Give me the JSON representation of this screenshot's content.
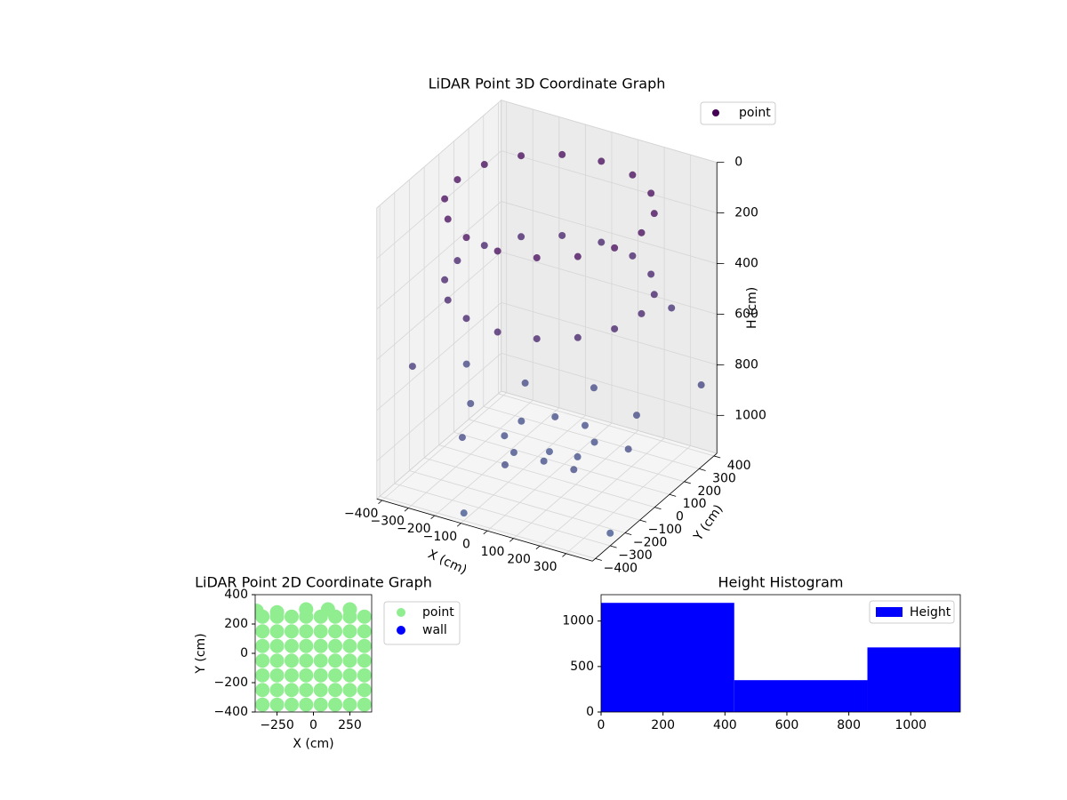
{
  "chart_data": [
    {
      "type": "scatter3d",
      "title": "LiDAR Point 3D Coordinate Graph",
      "xlabel": "X (cm)",
      "ylabel": "Y (cm)",
      "zlabel": "H (cm)",
      "xlim": [
        -420,
        400
      ],
      "ylim": [
        -420,
        420
      ],
      "zlim": [
        0,
        1150
      ],
      "z_inverted": true,
      "xticks": [
        {
          "value": -400,
          "label": "−400"
        },
        {
          "value": -300,
          "label": "−300"
        },
        {
          "value": -200,
          "label": "−200"
        },
        {
          "value": -100,
          "label": "−100"
        },
        0,
        100,
        200,
        300
      ],
      "yticks": [
        {
          "value": -400,
          "label": "−400"
        },
        {
          "value": -300,
          "label": "−300"
        },
        {
          "value": -200,
          "label": "−200"
        },
        {
          "value": -100,
          "label": "−100"
        },
        0,
        100,
        200,
        300,
        400
      ],
      "zticks": [
        0,
        200,
        400,
        600,
        800,
        1000
      ],
      "legend": "upper right",
      "colormap": [
        "#440154",
        "#3b528b"
      ],
      "series": [
        {
          "name": "point",
          "color": "#440154",
          "x": [
            350,
            323,
            247,
            134,
            0,
            -134,
            -247,
            -323,
            -350,
            -323,
            -247,
            -134,
            0,
            134,
            247,
            323,
            350,
            323,
            247,
            134,
            0,
            -134,
            -247,
            -323,
            -350,
            -323,
            -247,
            -134,
            0,
            134,
            247,
            323,
            300,
            212,
            0,
            -212,
            -300,
            -212,
            0,
            212,
            139,
            57,
            -57,
            -139,
            -139,
            -57,
            57,
            139,
            0,
            -400,
            400,
            -380,
            380,
            -100,
            250
          ],
          "y": [
            0,
            134,
            247,
            323,
            350,
            323,
            247,
            134,
            0,
            -134,
            -247,
            -323,
            -350,
            -323,
            -247,
            -134,
            0,
            134,
            247,
            323,
            350,
            323,
            247,
            134,
            0,
            -134,
            -247,
            -323,
            -350,
            -323,
            -247,
            -134,
            0,
            212,
            300,
            212,
            0,
            -212,
            -300,
            -212,
            57,
            139,
            139,
            57,
            -57,
            -139,
            -139,
            -57,
            0,
            150,
            -300,
            -250,
            350,
            -400,
            380
          ],
          "z": [
            80,
            80,
            80,
            80,
            80,
            80,
            80,
            80,
            80,
            80,
            80,
            80,
            80,
            80,
            80,
            80,
            400,
            400,
            400,
            400,
            400,
            400,
            400,
            400,
            400,
            400,
            400,
            400,
            400,
            400,
            400,
            400,
            950,
            950,
            950,
            950,
            950,
            950,
            950,
            950,
            1000,
            1000,
            1000,
            1000,
            1000,
            1000,
            1000,
            1000,
            1050,
            900,
            1100,
            700,
            850,
            1120,
            600
          ]
        }
      ]
    },
    {
      "type": "scatter",
      "title": "LiDAR Point 2D Coordinate Graph",
      "xlabel": "X (cm)",
      "ylabel": "Y (cm)",
      "xlim": [
        -400,
        400
      ],
      "ylim": [
        -400,
        400
      ],
      "xticks": [
        {
          "value": -250,
          "label": "−250"
        },
        0,
        250
      ],
      "yticks": [
        {
          "value": -400,
          "label": "−400"
        },
        {
          "value": -200,
          "label": "−200"
        },
        0,
        200,
        400
      ],
      "legend": "outside upper right",
      "series": [
        {
          "name": "point",
          "color": "#90ee90",
          "x": [
            -350,
            -250,
            -150,
            -50,
            50,
            150,
            250,
            350,
            -350,
            -250,
            -150,
            -50,
            50,
            150,
            250,
            350,
            -350,
            -250,
            -150,
            -50,
            50,
            150,
            250,
            350,
            -350,
            -250,
            -150,
            -50,
            50,
            150,
            250,
            350,
            -350,
            -250,
            -150,
            -50,
            50,
            150,
            250,
            350,
            -350,
            -250,
            -150,
            -50,
            50,
            150,
            250,
            350,
            -350,
            -250,
            -150,
            -50,
            50,
            150,
            250,
            350,
            -250,
            -50,
            100,
            250,
            -390
          ],
          "y": [
            -350,
            -350,
            -350,
            -350,
            -350,
            -350,
            -350,
            -350,
            -250,
            -250,
            -250,
            -250,
            -250,
            -250,
            -250,
            -250,
            -150,
            -150,
            -150,
            -150,
            -150,
            -150,
            -150,
            -150,
            -50,
            -50,
            -50,
            -50,
            -50,
            -50,
            -50,
            -50,
            50,
            50,
            50,
            50,
            50,
            50,
            50,
            50,
            150,
            150,
            150,
            150,
            150,
            150,
            150,
            150,
            250,
            250,
            250,
            250,
            250,
            250,
            250,
            250,
            280,
            300,
            300,
            300,
            290
          ]
        },
        {
          "name": "wall",
          "color": "#0000ff",
          "x": [],
          "y": []
        }
      ]
    },
    {
      "type": "histogram",
      "title": "Height Histogram",
      "name": "Height",
      "color": "#0000ff",
      "bins": [
        0,
        430,
        860,
        1160
      ],
      "values": [
        1200,
        350,
        710
      ],
      "xlim": [
        0,
        1160
      ],
      "ylim": [
        0,
        1290
      ],
      "xticks": [
        0,
        200,
        400,
        600,
        800,
        1000
      ],
      "yticks": [
        0,
        500,
        1000
      ],
      "legend": "upper right"
    }
  ]
}
